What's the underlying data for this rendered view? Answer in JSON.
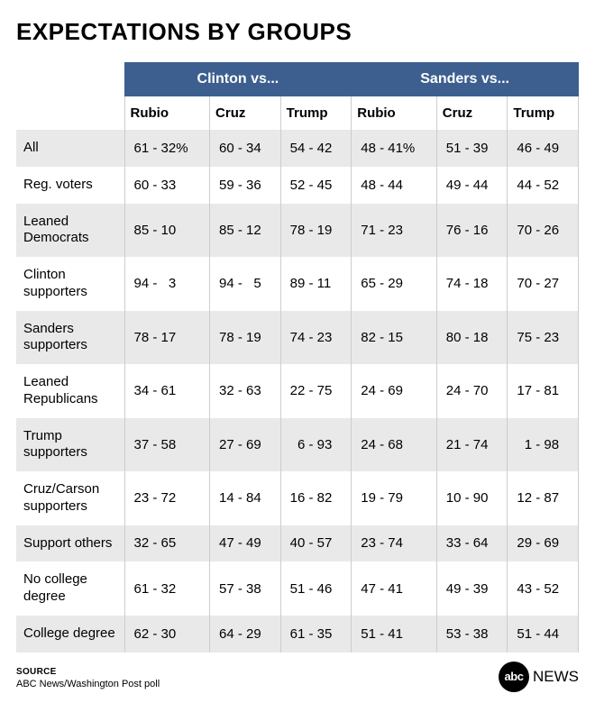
{
  "title": "EXPECTATIONS BY GROUPS",
  "super_headers": {
    "clinton": "Clinton vs...",
    "sanders": "Sanders vs..."
  },
  "sub_headers": [
    "Rubio",
    "Cruz",
    "Trump",
    "Rubio",
    "Cruz",
    "Trump"
  ],
  "rows": [
    {
      "label": "All",
      "cells": [
        "61 - 32%",
        "60 - 34",
        "54 - 42",
        "48 - 41%",
        "51 - 39",
        "46 - 49"
      ]
    },
    {
      "label": "Reg. voters",
      "cells": [
        "60 - 33",
        "59 - 36",
        "52 - 45",
        "48 - 44",
        "49 - 44",
        "44 - 52"
      ]
    },
    {
      "label": "Leaned Democrats",
      "cells": [
        "85 - 10",
        "85 - 12",
        "78 - 19",
        "71 - 23",
        "76 - 16",
        "70 - 26"
      ]
    },
    {
      "label": "Clinton supporters",
      "cells": [
        "94 -   3",
        "94 -   5",
        "89 - 11",
        "65 - 29",
        "74 - 18",
        "70 - 27"
      ]
    },
    {
      "label": "Sanders supporters",
      "cells": [
        "78 - 17",
        "78 - 19",
        "74 - 23",
        "82 - 15",
        "80 - 18",
        "75 - 23"
      ]
    },
    {
      "label": "Leaned Republicans",
      "cells": [
        "34 - 61",
        "32 - 63",
        "22 - 75",
        "24 - 69",
        "24 - 70",
        "17 - 81"
      ]
    },
    {
      "label": "Trump supporters",
      "cells": [
        "37 - 58",
        "27 - 69",
        "  6 - 93",
        "24 - 68",
        "21 - 74",
        "  1 - 98"
      ]
    },
    {
      "label": "Cruz/Carson supporters",
      "cells": [
        "23 - 72",
        "14 - 84",
        "16 - 82",
        "19 - 79",
        "10 - 90",
        "12 - 87"
      ]
    },
    {
      "label": "Support others",
      "cells": [
        "32 - 65",
        "47 - 49",
        "40 - 57",
        "23 - 74",
        "33 - 64",
        "29 - 69"
      ]
    },
    {
      "label": "No college degree",
      "cells": [
        "61 - 32",
        "57 - 38",
        "51 - 46",
        "47 - 41",
        "49 - 39",
        "43 - 52"
      ]
    },
    {
      "label": "College degree",
      "cells": [
        "62 - 30",
        "64 - 29",
        "61 - 35",
        "51 - 41",
        "53 - 38",
        "51 - 44"
      ]
    }
  ],
  "source": {
    "label": "SOURCE",
    "text": "ABC News/Washington Post poll"
  },
  "logo": {
    "circle": "abc",
    "text": "NEWS"
  },
  "colors": {
    "header_bg": "#3c5f8f",
    "row_alt": "#e9e9e9",
    "border": "#cdcdcd"
  }
}
